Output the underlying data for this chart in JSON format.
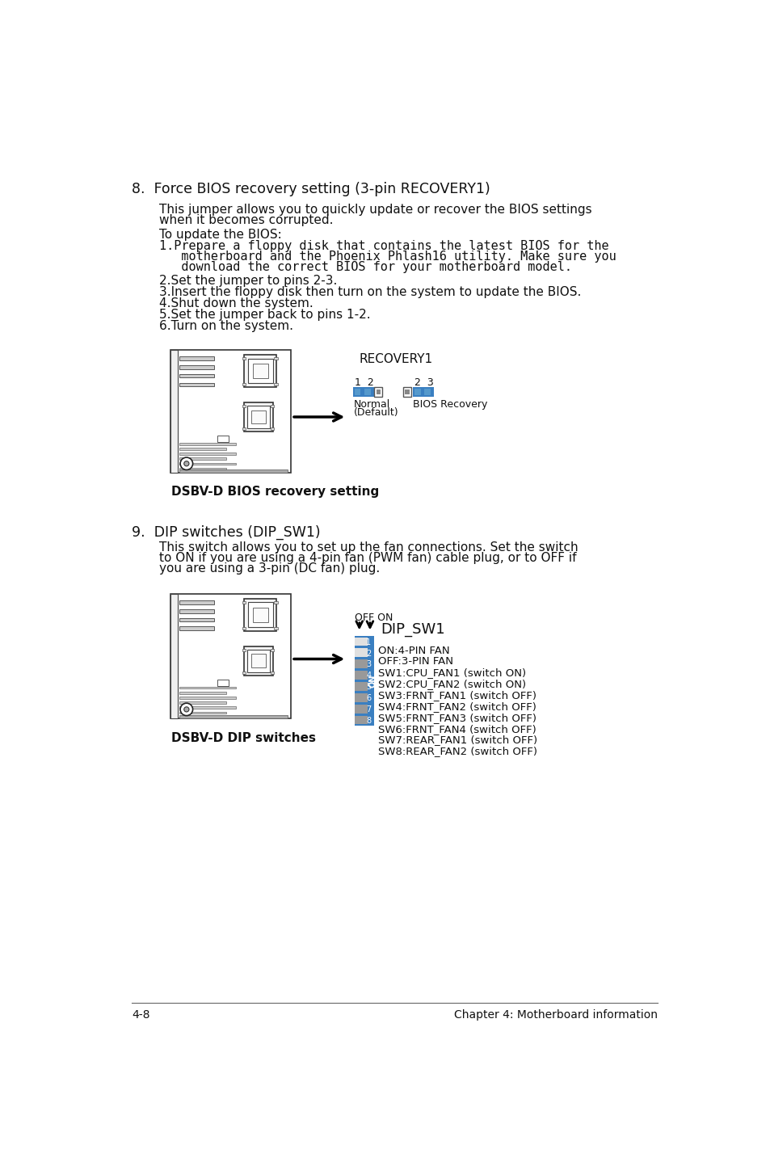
{
  "bg_color": "#ffffff",
  "text_color": "#111111",
  "blue_color": "#3a7fc1",
  "gray_sw": "#aaaaaa",
  "white_sw": "#e8e8e8",
  "section8_title": "8.  Force BIOS recovery setting (3-pin RECOVERY1)",
  "section8_para1a": "This jumper allows you to quickly update or recover the BIOS settings",
  "section8_para1b": "when it becomes corrupted.",
  "section8_para2": "To update the BIOS:",
  "section8_step1a": "1.Prepare a floppy disk that contains the latest BIOS for the",
  "section8_step1b": "   motherboard and the Phoenix Phlash16 utility. Make sure you",
  "section8_step1c": "   download the correct BIOS for your motherboard model.",
  "section8_step2": "2.Set the jumper to pins 2-3.",
  "section8_step3": "3.Insert the floppy disk then turn on the system to update the BIOS.",
  "section8_step4": "4.Shut down the system.",
  "section8_step5": "5.Set the jumper back to pins 1-2.",
  "section8_step6": "6.Turn on the system.",
  "recovery_label": "RECOVERY1",
  "normal_pins_label": "1  2",
  "bios_recovery_pins_label": "2  3",
  "normal_label": "Normal",
  "normal_default_label": "(Default)",
  "bios_recovery_label": "BIOS Recovery",
  "caption1": "DSBV-D BIOS recovery setting",
  "section9_title": "9.  DIP switches (DIP_SW1)",
  "section9_para1": "This switch allows you to set up the fan connections. Set the switch",
  "section9_para2": "to ON if you are using a 4-pin fan (PWM fan) cable plug, or to OFF if",
  "section9_para3": "you are using a 3-pin (DC fan) plug.",
  "off_on_label": "OFF ON",
  "dip_sw1_label": "DIP_SW1",
  "dip_items": [
    "ON:4-PIN FAN",
    "OFF:3-PIN FAN",
    "SW1:CPU_FAN1 (switch ON)",
    "SW2:CPU_FAN2 (switch ON)",
    "SW3:FRNT_FAN1 (switch OFF)",
    "SW4:FRNT_FAN2 (switch OFF)",
    "SW5:FRNT_FAN3 (switch OFF)",
    "SW6:FRNT_FAN4 (switch OFF)",
    "SW7:REAR_FAN1 (switch OFF)",
    "SW8:REAR_FAN2 (switch OFF)"
  ],
  "caption2": "DSBV-D DIP switches",
  "footer_left": "4-8",
  "footer_right": "Chapter 4: Motherboard information"
}
